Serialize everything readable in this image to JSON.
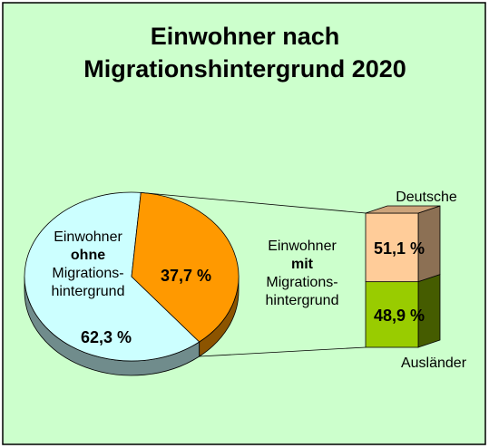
{
  "chart_data": [
    {
      "type": "pie",
      "title": "Einwohner nach Migrationshintergrund 2020",
      "categories": [
        [
          "Einwohner",
          "ohne",
          "Migrations-",
          "hintergrund"
        ],
        [
          "Einwohner",
          "mit",
          "Migrations-",
          "hintergrund"
        ]
      ],
      "values": [
        62.3,
        37.7
      ],
      "value_labels": [
        "62,3 %",
        "37,7 %"
      ],
      "colors": [
        "#ccffff",
        "#ff9900"
      ]
    },
    {
      "type": "stacked-bar",
      "categories": [
        "Deutsche",
        "Ausländer"
      ],
      "values": [
        51.1,
        48.9
      ],
      "value_labels": [
        "51,1 %",
        "48,9 %"
      ],
      "colors": [
        "#ffcc99",
        "#99cc00"
      ]
    }
  ]
}
